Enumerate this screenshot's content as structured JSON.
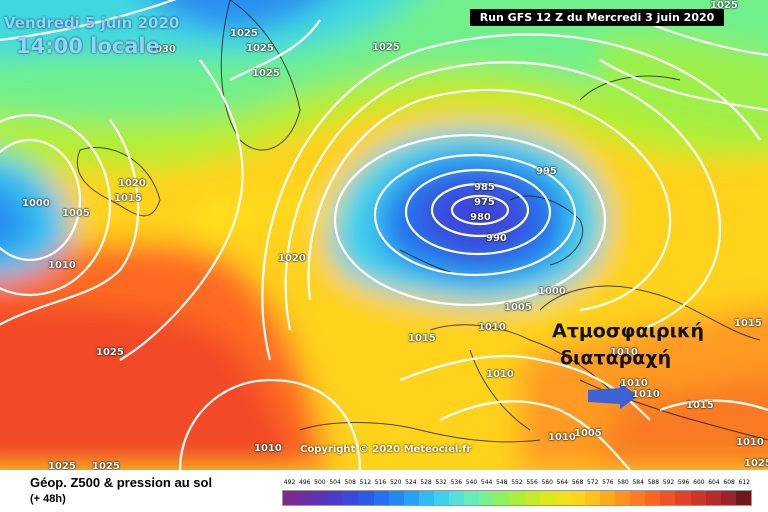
{
  "header": {
    "valid_date": "Vendredi 5 juin 2020",
    "valid_time": "14:00 locale",
    "run_info": "Run GFS 12 Z du Mercredi 3 juin 2020"
  },
  "map": {
    "copyright": "Copyright © 2020 Meteociel.fr",
    "annotation_line1": "Ατμοσφαιρική",
    "annotation_line2": "διαταραχή",
    "arrow_color": "#3d62d6",
    "pressure_labels": [
      "1025",
      "1030",
      "1025",
      "1025",
      "1025",
      "1025",
      "995",
      "985",
      "975",
      "980",
      "990",
      "1000",
      "1000",
      "1005",
      "1020",
      "1015",
      "1010",
      "1020",
      "1025",
      "1015",
      "1010",
      "1010",
      "1005",
      "1010",
      "1010",
      "1010",
      "1015",
      "1015",
      "1010",
      "1010",
      "1005",
      "1010",
      "1025",
      "1025",
      "1025"
    ]
  },
  "footer": {
    "title": "Géop. Z500 & pression au sol",
    "forecast_step": "(+ 48h)"
  },
  "scale": {
    "labels": [
      "492",
      "496",
      "500",
      "504",
      "508",
      "512",
      "516",
      "520",
      "524",
      "528",
      "532",
      "536",
      "540",
      "544",
      "548",
      "552",
      "556",
      "560",
      "564",
      "568",
      "572",
      "576",
      "580",
      "584",
      "588",
      "592",
      "596",
      "600",
      "604",
      "608",
      "612"
    ],
    "colors": [
      "#7d2a8d",
      "#6a2fa3",
      "#5a35b8",
      "#4a3dcb",
      "#3a49db",
      "#2c5ae6",
      "#2470ee",
      "#2288f2",
      "#25a2f4",
      "#2fbcf3",
      "#3fd0ec",
      "#54e0d8",
      "#66ecba",
      "#76f28f",
      "#8cf35f",
      "#a8f13a",
      "#c4ec26",
      "#dde81c",
      "#f0e21a",
      "#ffd619",
      "#ffc21a",
      "#ffab1c",
      "#ff931f",
      "#ff7b22",
      "#fb6524",
      "#f05226",
      "#e04228",
      "#cc3529",
      "#b52b2a",
      "#9c232b",
      "#6e1a1d"
    ]
  }
}
